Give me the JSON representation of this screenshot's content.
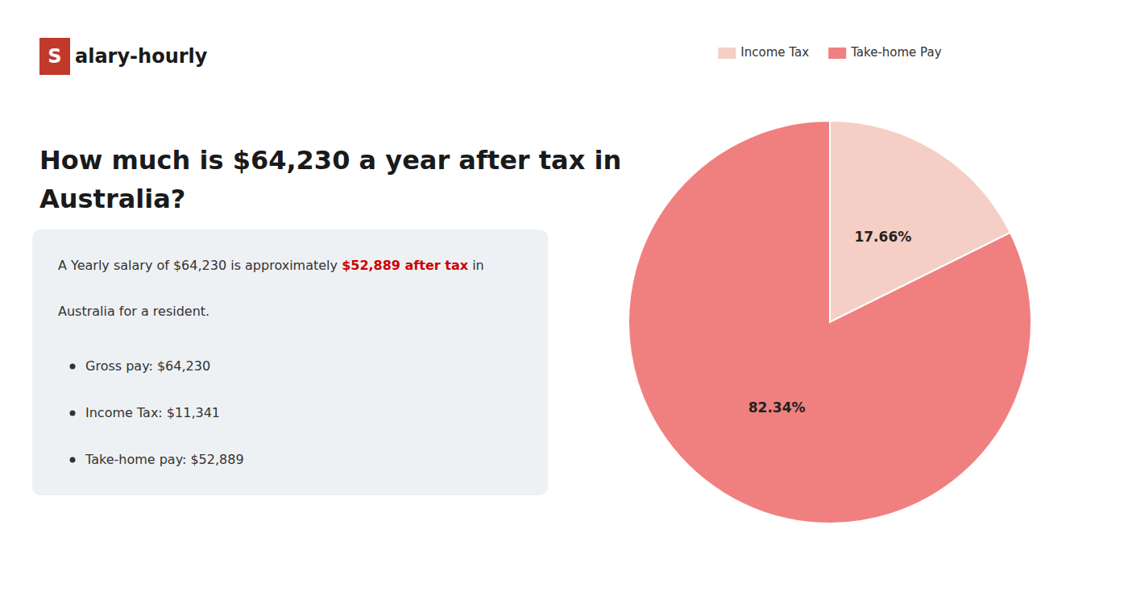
{
  "chart_data": {
    "type": "pie",
    "title": [
      "How much is $64,230 a year after tax in",
      "Australia?"
    ],
    "annotations": [
      {
        "text": "S",
        "color": "#c0392b"
      },
      {
        "text": "alary-hourly"
      },
      {
        "text": "A Yearly salary of $64,230 is approximately "
      },
      {
        "text": "$52,889 after tax",
        "color": "#cc0000"
      },
      {
        "text": " in"
      },
      {
        "text": "Australia for a resident."
      },
      {
        "text": "Gross pay: $64,230"
      },
      {
        "text": "Income Tax: $11,341"
      },
      {
        "text": "Take-home pay: $52,889"
      }
    ],
    "categories": [
      "Income Tax",
      "Take-home Pay"
    ],
    "values": [
      17.66,
      82.34
    ],
    "value_labels": [
      "17.66%",
      "82.34%"
    ],
    "colors": [
      "#f5cfc5",
      "#f08080"
    ],
    "data_labels": true,
    "legend": "top"
  }
}
